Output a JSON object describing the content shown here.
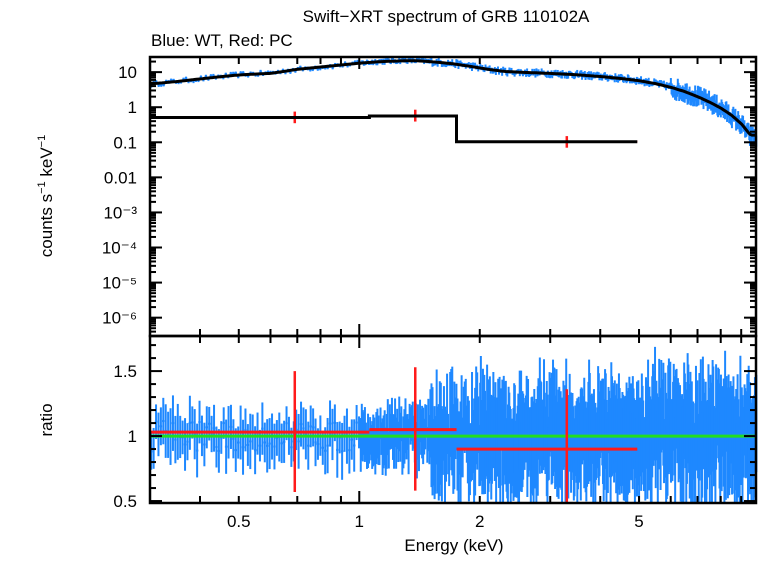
{
  "chart_data": [
    {
      "type": "scatter",
      "panel": "spectrum",
      "title": "Swift−XRT spectrum of GRB 110102A",
      "subtitle": "Blue: WT, Red: PC",
      "xlabel": "Energy (keV)",
      "ylabel": "counts s⁻¹ keV⁻¹",
      "xscale": "log",
      "yscale": "log",
      "xlim": [
        0.3,
        9.8
      ],
      "ylim": [
        3e-07,
        27
      ],
      "ytick_labels": [
        "10",
        "1",
        "0.1",
        "0.01",
        "10⁻³",
        "10⁻⁴",
        "10⁻⁵",
        "10⁻⁶"
      ],
      "ytick_values": [
        10,
        1,
        0.1,
        0.01,
        0.001,
        0.0001,
        1e-05,
        1e-06
      ],
      "colors": {
        "wt": "#1e88ff",
        "pc": "#ff1a1a",
        "model": "#000000"
      },
      "series": [
        {
          "name": "WT data",
          "color": "#1e88ff",
          "x": [
            0.3,
            0.35,
            0.4,
            0.45,
            0.5,
            0.55,
            0.6,
            0.7,
            0.8,
            0.9,
            1.0,
            1.1,
            1.2,
            1.3,
            1.4,
            1.5,
            1.7,
            1.9,
            2.1,
            2.3,
            2.6,
            3.0,
            3.5,
            4.0,
            4.5,
            5.0,
            5.5,
            6.0,
            6.5,
            7.0,
            7.5,
            8.0,
            8.5,
            9.0,
            9.5
          ],
          "y": [
            4.5,
            5.5,
            6.5,
            7.5,
            8.5,
            9.0,
            9.5,
            12,
            14,
            16,
            18,
            20,
            21,
            22,
            21.5,
            20,
            18,
            15,
            12,
            10.5,
            9.8,
            9.3,
            8.5,
            7.6,
            6.7,
            5.8,
            4.8,
            3.8,
            2.9,
            2.1,
            1.5,
            1.0,
            0.6,
            0.35,
            0.15
          ]
        },
        {
          "name": "WT model",
          "color": "#000000",
          "x": [
            0.3,
            0.35,
            0.4,
            0.45,
            0.5,
            0.55,
            0.6,
            0.7,
            0.8,
            0.9,
            1.0,
            1.1,
            1.2,
            1.3,
            1.4,
            1.5,
            1.7,
            1.9,
            2.1,
            2.3,
            2.6,
            3.0,
            3.5,
            4.0,
            4.5,
            5.0,
            5.5,
            6.0,
            6.5,
            7.0,
            7.5,
            8.0,
            8.5,
            9.0,
            9.5
          ],
          "y": [
            4.6,
            5.4,
            6.4,
            7.4,
            8.3,
            8.8,
            9.2,
            12,
            14,
            16,
            18,
            19.5,
            20.5,
            21,
            21,
            20,
            17.5,
            14.5,
            12,
            10.5,
            9.8,
            9.2,
            8.4,
            7.5,
            6.6,
            5.7,
            4.7,
            3.7,
            2.8,
            2.0,
            1.4,
            0.95,
            0.6,
            0.34,
            0.16
          ]
        },
        {
          "name": "PC data",
          "color": "#ff1a1a",
          "bins": [
            {
              "xlo": 0.3,
              "xhi": 1.06,
              "x": 0.69,
              "y": 0.52,
              "ylo": 0.35,
              "yhi": 0.75
            },
            {
              "xlo": 1.06,
              "xhi": 1.75,
              "x": 1.38,
              "y": 0.58,
              "ylo": 0.39,
              "yhi": 0.85
            },
            {
              "xlo": 1.75,
              "xhi": 4.95,
              "x": 3.3,
              "y": 0.105,
              "ylo": 0.07,
              "yhi": 0.15
            }
          ]
        },
        {
          "name": "PC model",
          "color": "#000000",
          "steps": [
            {
              "xlo": 0.3,
              "xhi": 1.06,
              "y": 0.51
            },
            {
              "xlo": 1.06,
              "xhi": 1.75,
              "y": 0.56
            },
            {
              "xlo": 1.75,
              "xhi": 4.95,
              "y": 0.104
            }
          ]
        }
      ]
    },
    {
      "type": "scatter",
      "panel": "ratio",
      "xlabel": "Energy (keV)",
      "ylabel": "ratio",
      "xscale": "log",
      "xlim": [
        0.3,
        9.8
      ],
      "ylim": [
        0.485,
        1.77
      ],
      "xtick_labels": [
        "0.5",
        "1",
        "2",
        "5"
      ],
      "xtick_values": [
        0.5,
        1,
        2,
        5
      ],
      "ytick_labels": [
        "1.5",
        "1",
        "0.5"
      ],
      "ytick_values": [
        1.5,
        1,
        0.5
      ],
      "reference_line": {
        "y": 1.0,
        "color": "#22dd22"
      },
      "series": [
        {
          "name": "WT ratio",
          "color": "#1e88ff",
          "scatter_range": {
            "x_from": 0.3,
            "x_to": 9.8,
            "center": 1.0,
            "spread_low_E": 0.2,
            "spread_high_E": 0.45
          }
        },
        {
          "name": "PC ratio",
          "color": "#ff1a1a",
          "bins": [
            {
              "xlo": 0.3,
              "xhi": 1.06,
              "x": 0.69,
              "y": 1.03,
              "ylo": 0.57,
              "yhi": 1.5
            },
            {
              "xlo": 1.06,
              "xhi": 1.75,
              "x": 1.38,
              "y": 1.05,
              "ylo": 0.58,
              "yhi": 1.53
            },
            {
              "xlo": 1.75,
              "xhi": 4.95,
              "x": 3.3,
              "y": 0.9,
              "ylo": 0.45,
              "yhi": 1.36
            }
          ]
        }
      ]
    }
  ]
}
